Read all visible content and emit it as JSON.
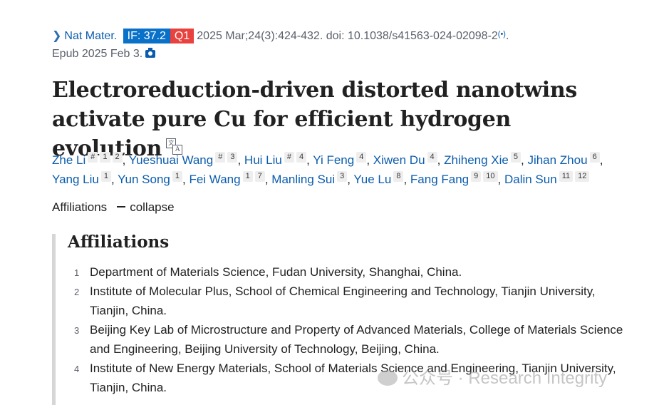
{
  "citation": {
    "journal": "Nat Mater.",
    "impact_factor": "IF: 37.2",
    "quartile": "Q1",
    "details": "2025 Mar;24(3):424-432. doi: 10.1038/s41563-024-02098-2",
    "trailing": ".",
    "epub": "Epub 2025 Feb 3.",
    "colors": {
      "if_badge": "#0a71c9",
      "q_badge": "#e8413e",
      "link": "#0b5cad"
    }
  },
  "title": "Electroreduction-driven distorted nanotwins activate pure Cu for efficient hydrogen evolution",
  "translate_icon": {
    "a": "文",
    "b": "A"
  },
  "authors": [
    {
      "name": "Zhe Li",
      "sups": [
        "#",
        "1",
        "2"
      ]
    },
    {
      "name": "Yueshuai Wang",
      "sups": [
        "#",
        "3"
      ]
    },
    {
      "name": "Hui Liu",
      "sups": [
        "#",
        "4"
      ]
    },
    {
      "name": "Yi Feng",
      "sups": [
        "4"
      ]
    },
    {
      "name": "Xiwen Du",
      "sups": [
        "4"
      ]
    },
    {
      "name": "Zhiheng Xie",
      "sups": [
        "5"
      ]
    },
    {
      "name": "Jihan Zhou",
      "sups": [
        "6"
      ]
    },
    {
      "name": "Yang Liu",
      "sups": [
        "1"
      ]
    },
    {
      "name": "Yun Song",
      "sups": [
        "1"
      ]
    },
    {
      "name": "Fei Wang",
      "sups": [
        "1",
        "7"
      ]
    },
    {
      "name": "Manling Sui",
      "sups": [
        "3"
      ]
    },
    {
      "name": "Yue Lu",
      "sups": [
        "8"
      ]
    },
    {
      "name": "Fang Fang",
      "sups": [
        "9",
        "10"
      ]
    },
    {
      "name": "Dalin Sun",
      "sups": [
        "11",
        "12"
      ]
    }
  ],
  "affiliations_toggle": {
    "label": "Affiliations",
    "action": "collapse"
  },
  "affiliations": {
    "heading": "Affiliations",
    "items": [
      {
        "num": "1",
        "text": "Department of Materials Science, Fudan University, Shanghai, China."
      },
      {
        "num": "2",
        "text": "Institute of Molecular Plus, School of Chemical Engineering and Technology, Tianjin University, Tianjin, China."
      },
      {
        "num": "3",
        "text": "Beijing Key Lab of Microstructure and Property of Advanced Materials, College of Materials Science and Engineering, Beijing University of Technology, Beijing, China."
      },
      {
        "num": "4",
        "text": "Institute of New Energy Materials, School of Materials Science and Engineering, Tianjin University, Tianjin, China."
      }
    ]
  },
  "watermark": "公众号 · Research Integrity"
}
